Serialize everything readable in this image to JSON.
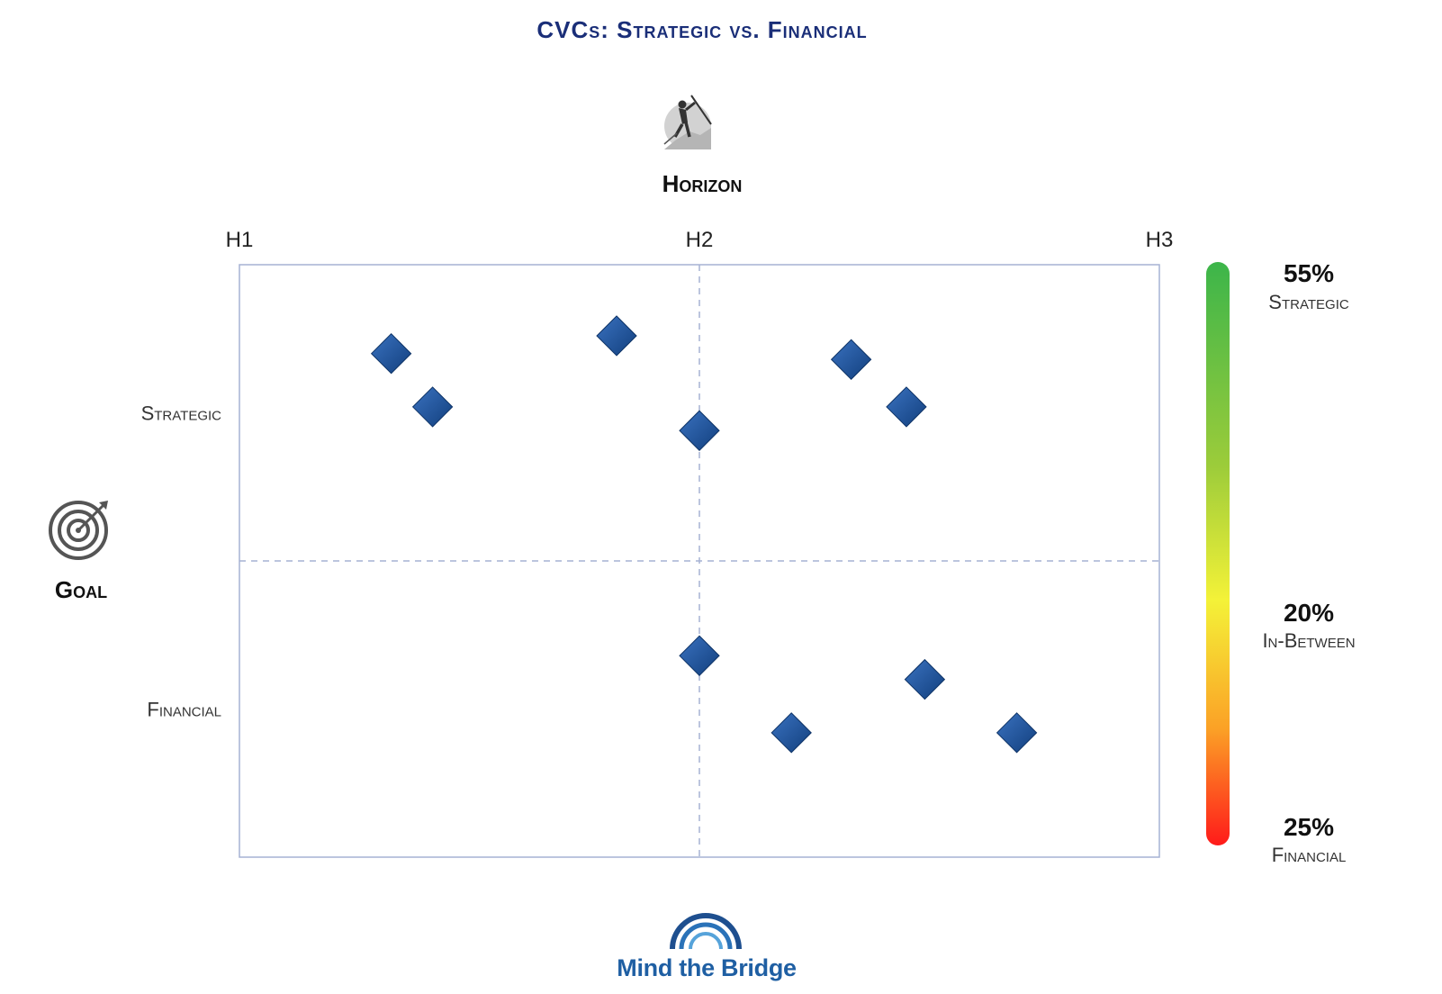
{
  "colors": {
    "title": "#1a2e78",
    "marker": "#1f4f95",
    "grid": "#a6b2d4",
    "logo": "#1f5fa3"
  },
  "icons": {
    "horizon": "climber-icon",
    "goal": "target-icon",
    "logo": "bridge-arc-logo"
  },
  "chart_data": {
    "type": "scatter",
    "title": "CVCs: Strategic vs. Financial",
    "xlabel": "Horizon",
    "ylabel": "Goal",
    "x_ticks": [
      "H1",
      "H2",
      "H3"
    ],
    "xlim": [
      1,
      3
    ],
    "y_categories": [
      "Strategic",
      "Financial"
    ],
    "ylim": [
      0,
      1
    ],
    "divider_x": 2,
    "divider_y": 0.5,
    "points": [
      {
        "x": 1.33,
        "y": 0.85
      },
      {
        "x": 1.42,
        "y": 0.76
      },
      {
        "x": 1.82,
        "y": 0.88
      },
      {
        "x": 2.0,
        "y": 0.72
      },
      {
        "x": 2.33,
        "y": 0.84
      },
      {
        "x": 2.45,
        "y": 0.76
      },
      {
        "x": 2.0,
        "y": 0.34
      },
      {
        "x": 2.49,
        "y": 0.3
      },
      {
        "x": 2.2,
        "y": 0.21
      },
      {
        "x": 2.69,
        "y": 0.21
      }
    ],
    "legend": [
      {
        "percent": "55%",
        "label": "Strategic"
      },
      {
        "percent": "20%",
        "label": "In-Between"
      },
      {
        "percent": "25%",
        "label": "Financial"
      }
    ]
  },
  "footer": {
    "brand": "Mind the Bridge"
  }
}
